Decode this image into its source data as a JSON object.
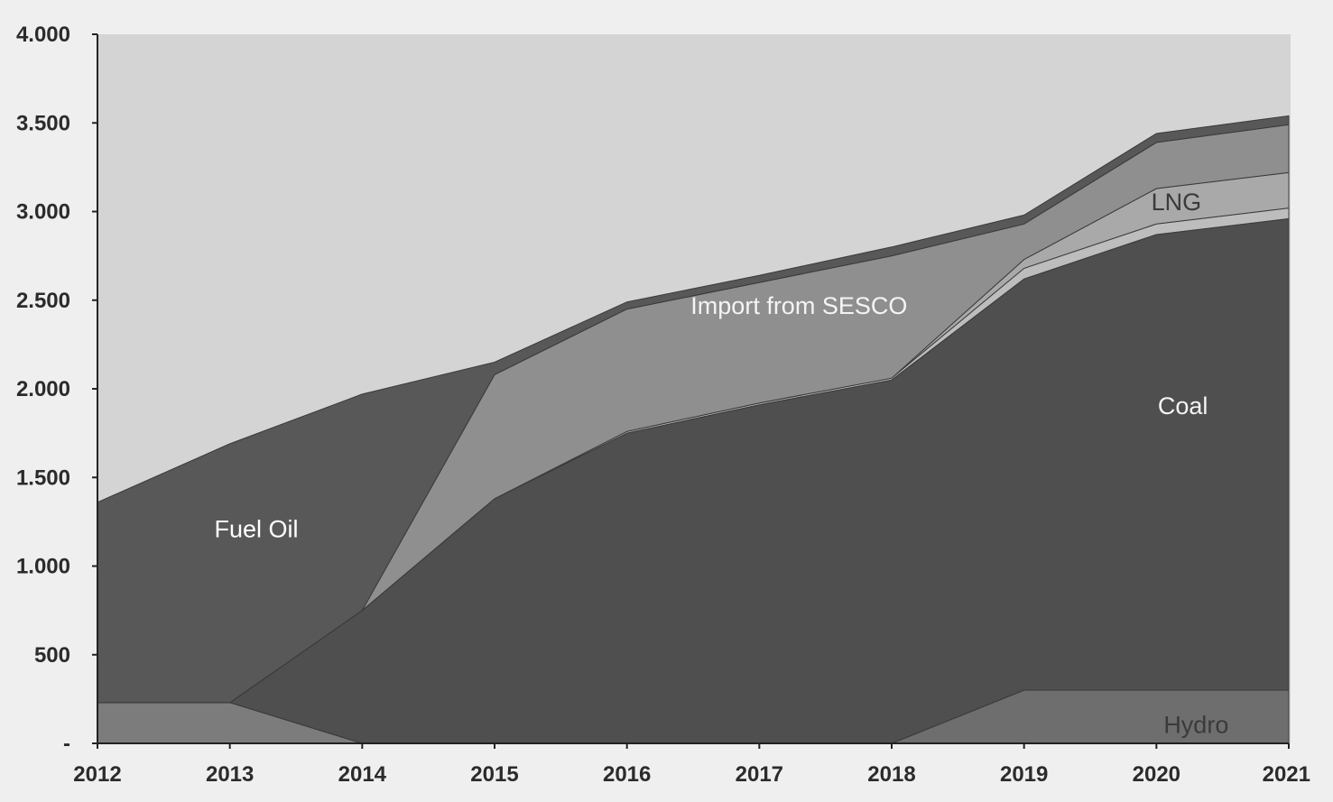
{
  "chart_data": {
    "type": "area",
    "stacked": true,
    "x": [
      2012,
      2013,
      2014,
      2015,
      2016,
      2017,
      2018,
      2019,
      2020,
      2021
    ],
    "x_tick_labels": [
      "2012",
      "2013",
      "2014",
      "2015",
      "2016",
      "2017",
      "2018",
      "2019",
      "2020",
      "2021"
    ],
    "y_tick_labels": [
      "-",
      "500",
      "1.000",
      "1.500",
      "2.000",
      "2.500",
      "3.000",
      "3.500",
      "4.000"
    ],
    "ylim": [
      0,
      4000
    ],
    "grid": false,
    "series": [
      {
        "name": "Hydro",
        "values": [
          0,
          0,
          0,
          0,
          0,
          0,
          0,
          300,
          300,
          300
        ],
        "color": "#6e6e6e"
      },
      {
        "name": "",
        "values": [
          230,
          230,
          0,
          0,
          0,
          0,
          0,
          0,
          0,
          0
        ],
        "color": "#7c7c7c"
      },
      {
        "name": "Coal",
        "values": [
          0,
          0,
          750,
          1380,
          1750,
          1910,
          2050,
          2320,
          2570,
          2660
        ],
        "color": "#4f4f4f"
      },
      {
        "name": "",
        "values": [
          0,
          0,
          0,
          0,
          10,
          10,
          10,
          60,
          60,
          60
        ],
        "color": "#bdbdbd"
      },
      {
        "name": "LNG",
        "values": [
          0,
          0,
          0,
          0,
          0,
          0,
          0,
          50,
          200,
          200
        ],
        "color": "#a9a9a9"
      },
      {
        "name": "Import from SESCO",
        "values": [
          0,
          0,
          0,
          700,
          690,
          680,
          690,
          200,
          260,
          270
        ],
        "color": "#8f8f8f"
      },
      {
        "name": "Fuel Oil",
        "values": [
          1130,
          1460,
          1220,
          70,
          40,
          40,
          50,
          50,
          50,
          50
        ],
        "color": "#585858"
      }
    ]
  }
}
